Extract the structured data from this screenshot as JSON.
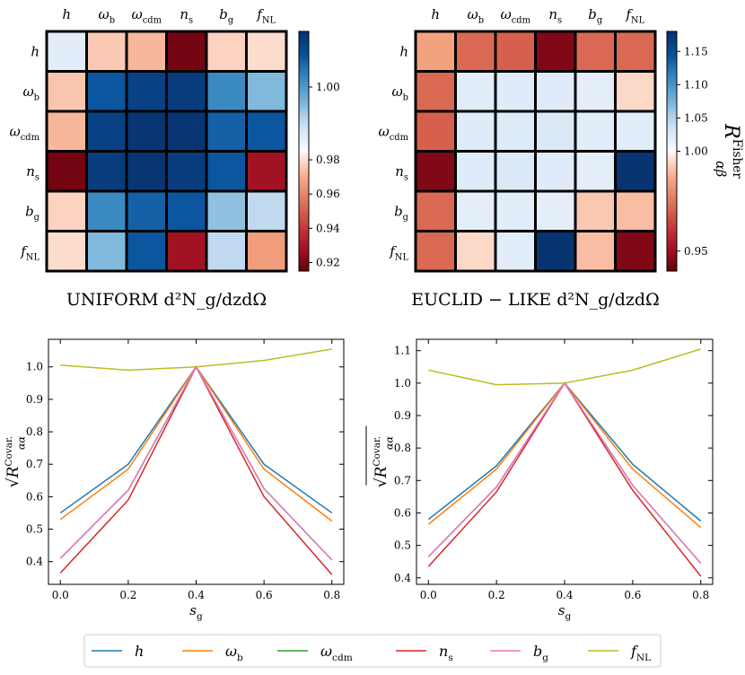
{
  "chart_data": [
    {
      "type": "heatmap",
      "title": "UNIFORM d²N_g/dzdΩ",
      "row_labels": [
        "h",
        "ω_b",
        "ω_cdm",
        "n_s",
        "b_g",
        "f_NL"
      ],
      "col_labels": [
        "h",
        "ω_b",
        "ω_cdm",
        "n_s",
        "b_g",
        "f_NL"
      ],
      "values": [
        [
          0.988,
          0.976,
          0.972,
          0.918,
          0.978,
          0.98
        ],
        [
          0.975,
          1.007,
          1.01,
          1.011,
          1.002,
          0.996
        ],
        [
          0.972,
          1.01,
          1.012,
          1.012,
          1.006,
          1.007
        ],
        [
          0.918,
          1.011,
          1.012,
          1.011,
          1.007,
          0.928
        ],
        [
          0.978,
          1.002,
          1.006,
          1.007,
          0.995,
          0.992
        ],
        [
          0.98,
          0.996,
          1.007,
          0.928,
          0.992,
          0.966
        ]
      ],
      "colorbar": {
        "min": 0.915,
        "max": 1.013,
        "ticks": [
          "0.92",
          "0.94",
          "0.96",
          "0.98",
          "1.00"
        ],
        "tick_values": [
          0.92,
          0.94,
          0.96,
          0.98,
          1.0
        ],
        "label": ""
      }
    },
    {
      "type": "heatmap",
      "title": "EUCLID − LIKE d²N_g/dzdΩ",
      "row_labels": [
        "h",
        "ω_b",
        "ω_cdm",
        "n_s",
        "b_g",
        "f_NL"
      ],
      "col_labels": [
        "h",
        "ω_b",
        "ω_cdm",
        "n_s",
        "b_g",
        "f_NL"
      ],
      "values": [
        [
          0.985,
          0.972,
          0.97,
          0.945,
          0.972,
          0.972
        ],
        [
          0.972,
          1.02,
          1.022,
          1.022,
          1.018,
          0.995
        ],
        [
          0.97,
          1.022,
          1.024,
          1.025,
          1.02,
          1.02
        ],
        [
          0.945,
          1.022,
          1.025,
          1.022,
          1.018,
          1.175
        ],
        [
          0.972,
          1.018,
          1.02,
          1.018,
          0.992,
          0.99
        ],
        [
          0.972,
          0.995,
          1.02,
          1.175,
          0.99,
          0.945
        ]
      ],
      "colorbar": {
        "min": 0.94,
        "max": 1.18,
        "ticks": [
          "0.95",
          "1.00",
          "1.05",
          "1.10",
          "1.15"
        ],
        "tick_values": [
          0.95,
          1.0,
          1.05,
          1.1,
          1.15
        ],
        "label": "R^Fisher_αβ"
      }
    },
    {
      "type": "line",
      "title": "",
      "xlabel": "s_g",
      "ylabel": "√R^Covar._αα",
      "x": [
        0.0,
        0.2,
        0.4,
        0.6,
        0.8
      ],
      "xlim": [
        -0.035,
        0.835
      ],
      "ylim": [
        0.33,
        1.085
      ],
      "xticks": [
        0.0,
        0.2,
        0.4,
        0.6,
        0.8
      ],
      "xtick_labels": [
        "0.0",
        "0.2",
        "0.4",
        "0.6",
        "0.8"
      ],
      "yticks": [
        0.4,
        0.5,
        0.6,
        0.7,
        0.8,
        0.9,
        1.0
      ],
      "ytick_labels": [
        "0.4",
        "0.5",
        "0.6",
        "0.7",
        "0.8",
        "0.9",
        "1.0"
      ],
      "series": [
        {
          "name": "h",
          "color": "#1f77b4",
          "values": [
            0.55,
            0.7,
            1.0,
            0.7,
            0.55
          ]
        },
        {
          "name": "ω_b",
          "color": "#ff7f0e",
          "values": [
            0.53,
            0.685,
            1.0,
            0.685,
            0.525
          ]
        },
        {
          "name": "ω_cdm",
          "color": "#2ca02c",
          "values": [
            0.41,
            0.62,
            1.0,
            0.625,
            0.405
          ]
        },
        {
          "name": "n_s",
          "color": "#d62728",
          "values": [
            0.365,
            0.59,
            1.0,
            0.6,
            0.36
          ]
        },
        {
          "name": "b_g",
          "color": "#e377c2",
          "values": [
            0.41,
            0.62,
            1.0,
            0.625,
            0.405
          ]
        },
        {
          "name": "f_NL",
          "color": "#bcbd22",
          "values": [
            1.005,
            0.99,
            1.0,
            1.02,
            1.055
          ]
        }
      ]
    },
    {
      "type": "line",
      "title": "",
      "xlabel": "s_g",
      "ylabel": "√R^Covar._αα",
      "x": [
        0.0,
        0.2,
        0.4,
        0.6,
        0.8
      ],
      "xlim": [
        -0.035,
        0.835
      ],
      "ylim": [
        0.38,
        1.135
      ],
      "xticks": [
        0.0,
        0.2,
        0.4,
        0.6,
        0.8
      ],
      "xtick_labels": [
        "0.0",
        "0.2",
        "0.4",
        "0.6",
        "0.8"
      ],
      "yticks": [
        0.4,
        0.5,
        0.6,
        0.7,
        0.8,
        0.9,
        1.0,
        1.1
      ],
      "ytick_labels": [
        "0.4",
        "0.5",
        "0.6",
        "0.7",
        "0.8",
        "0.9",
        "1.0",
        "1.1"
      ],
      "series": [
        {
          "name": "h",
          "color": "#1f77b4",
          "values": [
            0.58,
            0.745,
            1.0,
            0.75,
            0.575
          ]
        },
        {
          "name": "ω_b",
          "color": "#ff7f0e",
          "values": [
            0.565,
            0.735,
            1.0,
            0.735,
            0.555
          ]
        },
        {
          "name": "ω_cdm",
          "color": "#2ca02c",
          "values": [
            0.465,
            0.68,
            1.0,
            0.685,
            0.445
          ]
        },
        {
          "name": "n_s",
          "color": "#d62728",
          "values": [
            0.435,
            0.665,
            1.0,
            0.67,
            0.405
          ]
        },
        {
          "name": "b_g",
          "color": "#e377c2",
          "values": [
            0.465,
            0.68,
            1.0,
            0.685,
            0.445
          ]
        },
        {
          "name": "f_NL",
          "color": "#bcbd22",
          "values": [
            1.04,
            0.995,
            1.0,
            1.04,
            1.105
          ]
        }
      ]
    }
  ],
  "legend": {
    "entries": [
      {
        "label": "h",
        "color": "#1f77b4"
      },
      {
        "label": "ω_b",
        "color": "#ff7f0e"
      },
      {
        "label": "ω_cdm",
        "color": "#2ca02c"
      },
      {
        "label": "n_s",
        "color": "#d62728"
      },
      {
        "label": "b_g",
        "color": "#e377c2"
      },
      {
        "label": "f_NL",
        "color": "#bcbd22"
      }
    ]
  }
}
